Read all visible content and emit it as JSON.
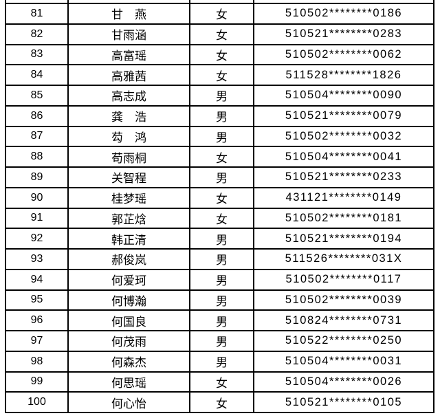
{
  "colors": {
    "background": "#ffffff",
    "border": "#000000",
    "text": "#000000"
  },
  "table": {
    "description": "name-roster-table",
    "rows": [
      {
        "index": "81",
        "name": "甘　燕",
        "gender": "女",
        "id": "510502********0186"
      },
      {
        "index": "82",
        "name": "甘雨涵",
        "gender": "女",
        "id": "510521********0283"
      },
      {
        "index": "83",
        "name": "高富瑶",
        "gender": "女",
        "id": "510502********0062"
      },
      {
        "index": "84",
        "name": "高雅茜",
        "gender": "女",
        "id": "511528********1826"
      },
      {
        "index": "85",
        "name": "高志成",
        "gender": "男",
        "id": "510504********0090"
      },
      {
        "index": "86",
        "name": "龚　浩",
        "gender": "男",
        "id": "510521********0079"
      },
      {
        "index": "87",
        "name": "芶　鸿",
        "gender": "男",
        "id": "510502********0032"
      },
      {
        "index": "88",
        "name": "苟雨桐",
        "gender": "女",
        "id": "510504********0041"
      },
      {
        "index": "89",
        "name": "关智程",
        "gender": "男",
        "id": "510521********0233"
      },
      {
        "index": "90",
        "name": "桂梦瑶",
        "gender": "女",
        "id": "431121********0149"
      },
      {
        "index": "91",
        "name": "郭芷焓",
        "gender": "女",
        "id": "510502********0181"
      },
      {
        "index": "92",
        "name": "韩正清",
        "gender": "男",
        "id": "510521********0194"
      },
      {
        "index": "93",
        "name": "郝俊岚",
        "gender": "男",
        "id": "511526********031X"
      },
      {
        "index": "94",
        "name": "何爱珂",
        "gender": "男",
        "id": "510502********0117"
      },
      {
        "index": "95",
        "name": "何博瀚",
        "gender": "男",
        "id": "510502********0039"
      },
      {
        "index": "96",
        "name": "何国良",
        "gender": "男",
        "id": "510824********0731"
      },
      {
        "index": "97",
        "name": "何茂雨",
        "gender": "男",
        "id": "510522********0250"
      },
      {
        "index": "98",
        "name": "何森杰",
        "gender": "男",
        "id": "510504********0031"
      },
      {
        "index": "99",
        "name": "何思瑶",
        "gender": "女",
        "id": "510504********0026"
      },
      {
        "index": "100",
        "name": "何心怡",
        "gender": "女",
        "id": "510521********0105"
      }
    ]
  }
}
